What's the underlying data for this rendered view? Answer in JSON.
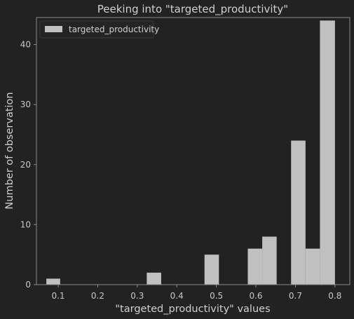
{
  "colors": {
    "background": "#222222",
    "bar": "#c0c0c0",
    "frame": "#8a8a8a",
    "text": "#d0d0d0"
  },
  "chart_data": {
    "type": "bar",
    "title": "Peeking into \"targeted_productivity\"",
    "xlabel": "\"targeted_productivity\" values",
    "ylabel": "Number of observation",
    "legend": {
      "position": "top-left",
      "entries": [
        "targeted_productivity"
      ]
    },
    "grid": false,
    "xlim": [
      0.045,
      0.8375
    ],
    "ylim": [
      0,
      44.5
    ],
    "x_ticks": [
      0.1,
      0.2,
      0.3,
      0.4,
      0.5,
      0.6,
      0.7,
      0.8
    ],
    "x_tick_labels": [
      "0.1",
      "0.2",
      "0.3",
      "0.4",
      "0.5",
      "0.6",
      "0.7",
      "0.8"
    ],
    "y_ticks": [
      0,
      10,
      20,
      30,
      40
    ],
    "y_tick_labels": [
      "0",
      "10",
      "20",
      "30",
      "40"
    ],
    "series": [
      {
        "name": "targeted_productivity",
        "bins": [
          {
            "x0": 0.07,
            "x1": 0.105,
            "count": 1
          },
          {
            "x0": 0.105,
            "x1": 0.1415,
            "count": 0
          },
          {
            "x0": 0.1415,
            "x1": 0.178,
            "count": 0
          },
          {
            "x0": 0.178,
            "x1": 0.2145,
            "count": 0
          },
          {
            "x0": 0.2145,
            "x1": 0.251,
            "count": 0
          },
          {
            "x0": 0.251,
            "x1": 0.2875,
            "count": 0
          },
          {
            "x0": 0.2875,
            "x1": 0.324,
            "count": 0
          },
          {
            "x0": 0.324,
            "x1": 0.3605,
            "count": 2
          },
          {
            "x0": 0.3605,
            "x1": 0.397,
            "count": 0
          },
          {
            "x0": 0.397,
            "x1": 0.4335,
            "count": 0
          },
          {
            "x0": 0.4335,
            "x1": 0.47,
            "count": 0
          },
          {
            "x0": 0.47,
            "x1": 0.5065,
            "count": 5
          },
          {
            "x0": 0.5065,
            "x1": 0.543,
            "count": 0
          },
          {
            "x0": 0.543,
            "x1": 0.5795,
            "count": 0
          },
          {
            "x0": 0.5795,
            "x1": 0.616,
            "count": 6
          },
          {
            "x0": 0.616,
            "x1": 0.6525,
            "count": 8
          },
          {
            "x0": 0.6525,
            "x1": 0.689,
            "count": 0
          },
          {
            "x0": 0.689,
            "x1": 0.7255,
            "count": 24
          },
          {
            "x0": 0.7255,
            "x1": 0.762,
            "count": 6
          },
          {
            "x0": 0.762,
            "x1": 0.8,
            "count": 44
          }
        ]
      }
    ]
  }
}
